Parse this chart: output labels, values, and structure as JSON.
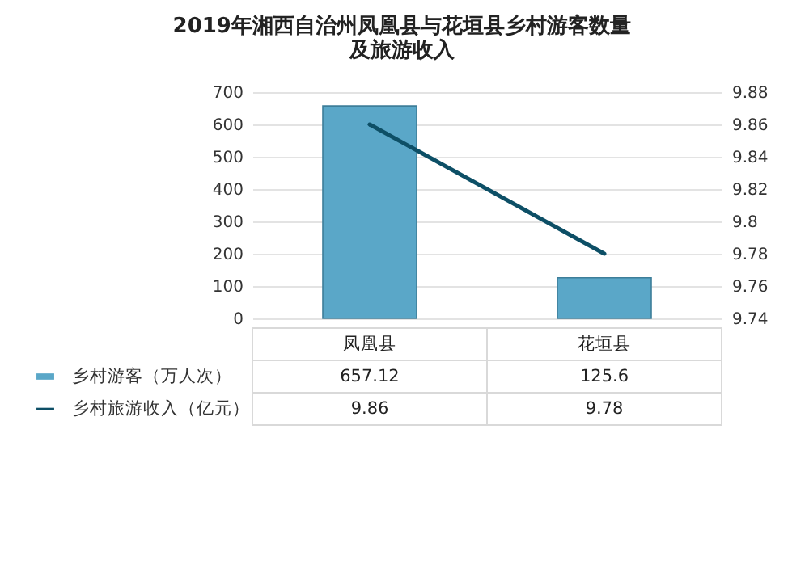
{
  "chart_data": {
    "type": "bar",
    "title": "2019年湘西自治州凤凰县与花垣县乡村游客数量及旅游收入",
    "categories": [
      "凤凰县",
      "花垣县"
    ],
    "series": [
      {
        "name": "乡村游客（万人次）",
        "color": "#5aa7c8",
        "values": [
          657.12,
          125.6
        ]
      },
      {
        "name": "乡村旅游收入（亿元）",
        "type": "line",
        "axis": "y2",
        "color": "#0d4f66",
        "values": [
          9.86,
          9.78
        ]
      }
    ],
    "ylim": [
      0,
      700
    ],
    "yticks": [
      0,
      100,
      200,
      300,
      400,
      500,
      600,
      700
    ],
    "y2lim": [
      9.74,
      9.88
    ],
    "y2ticks": [
      9.74,
      9.76,
      9.78,
      9.8,
      9.82,
      9.84,
      9.86,
      9.88
    ],
    "grid": "y",
    "legend": "bottom",
    "data_labels": true
  }
}
